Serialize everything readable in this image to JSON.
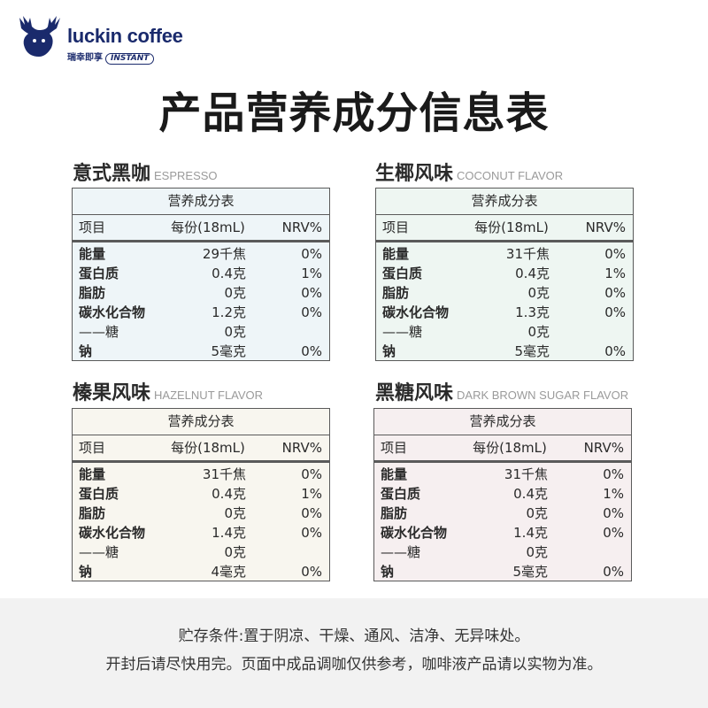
{
  "brand": {
    "name": "luckin coffee",
    "sub_cn": "瑞幸即享",
    "sub_tag": "INSTANT",
    "color": "#1a2a6c"
  },
  "page_title": "产品营养成分信息表",
  "table_labels": {
    "title": "营养成分表",
    "col_item": "项目",
    "col_serving": "每份(18mL)",
    "col_nrv": "NRV%"
  },
  "flavors": [
    {
      "name_cn": "意式黑咖",
      "name_en": "ESPRESSO",
      "bg": "#eef5f8",
      "rows": [
        {
          "item": "能量",
          "value": "29千焦",
          "nrv": "0%"
        },
        {
          "item": "蛋白质",
          "value": "0.4克",
          "nrv": "1%"
        },
        {
          "item": "脂肪",
          "value": "0克",
          "nrv": "0%"
        },
        {
          "item": "碳水化合物",
          "value": "1.2克",
          "nrv": "0%"
        },
        {
          "item": "——糖",
          "value": "0克",
          "nrv": ""
        },
        {
          "item": "钠",
          "value": "5毫克",
          "nrv": "0%"
        }
      ]
    },
    {
      "name_cn": "生椰风味",
      "name_en": "COCONUT FLAVOR",
      "bg": "#eef6f2",
      "rows": [
        {
          "item": "能量",
          "value": "31千焦",
          "nrv": "0%"
        },
        {
          "item": "蛋白质",
          "value": "0.4克",
          "nrv": "1%"
        },
        {
          "item": "脂肪",
          "value": "0克",
          "nrv": "0%"
        },
        {
          "item": "碳水化合物",
          "value": "1.3克",
          "nrv": "0%"
        },
        {
          "item": "——糖",
          "value": "0克",
          "nrv": ""
        },
        {
          "item": "钠",
          "value": "5毫克",
          "nrv": "0%"
        }
      ]
    },
    {
      "name_cn": "榛果风味",
      "name_en": "HAZELNUT  FLAVOR",
      "bg": "#f8f6ef",
      "rows": [
        {
          "item": "能量",
          "value": "31千焦",
          "nrv": "0%"
        },
        {
          "item": "蛋白质",
          "value": "0.4克",
          "nrv": "1%"
        },
        {
          "item": "脂肪",
          "value": "0克",
          "nrv": "0%"
        },
        {
          "item": "碳水化合物",
          "value": "1.4克",
          "nrv": "0%"
        },
        {
          "item": "——糖",
          "value": "0克",
          "nrv": ""
        },
        {
          "item": "钠",
          "value": "4毫克",
          "nrv": "0%"
        }
      ]
    },
    {
      "name_cn": "黑糖风味",
      "name_en": "DARK BROWN SUGAR FLAVOR",
      "bg": "#f6eff0",
      "rows": [
        {
          "item": "能量",
          "value": "31千焦",
          "nrv": "0%"
        },
        {
          "item": "蛋白质",
          "value": "0.4克",
          "nrv": "1%"
        },
        {
          "item": "脂肪",
          "value": "0克",
          "nrv": "0%"
        },
        {
          "item": "碳水化合物",
          "value": "1.4克",
          "nrv": "0%"
        },
        {
          "item": "——糖",
          "value": "0克",
          "nrv": ""
        },
        {
          "item": "钠",
          "value": "5毫克",
          "nrv": "0%"
        }
      ]
    }
  ],
  "footer": {
    "line1": "贮存条件:置于阴凉、干燥、通风、洁净、无异味处。",
    "line2": "开封后请尽快用完。页面中成品调咖仅供参考，咖啡液产品请以实物为准。"
  }
}
